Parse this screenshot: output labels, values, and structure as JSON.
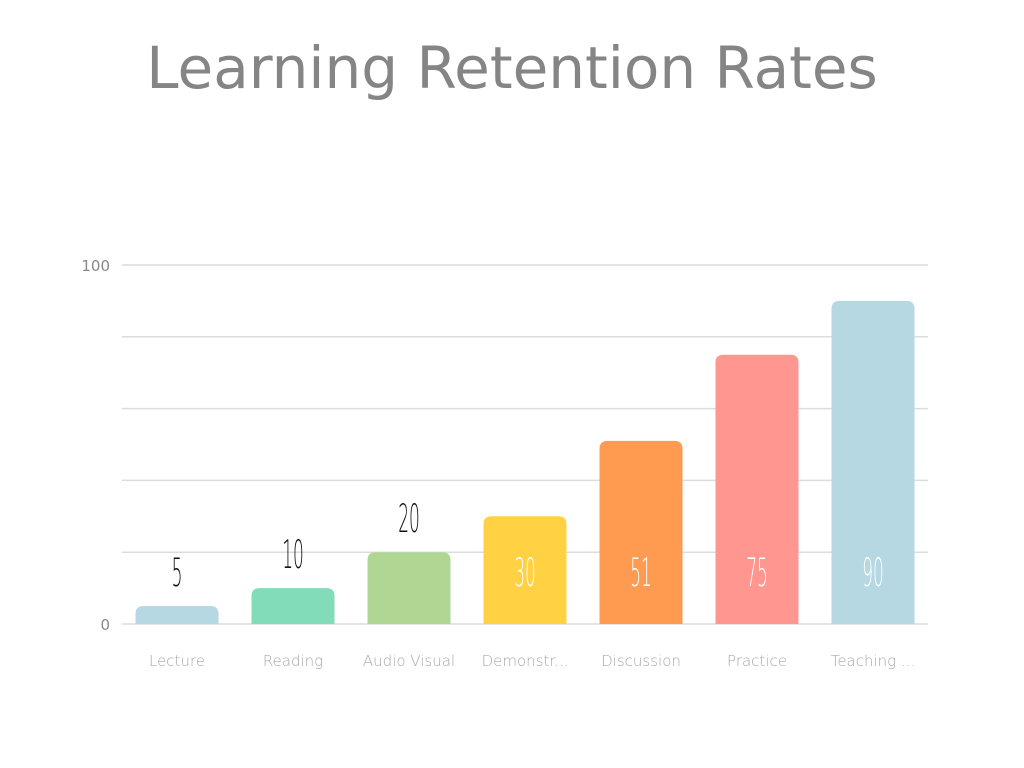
{
  "chart_data": {
    "type": "bar",
    "title": "Learning Retention Rates",
    "categories": [
      "Lecture",
      "Reading",
      "Audio Visual",
      "Demonstr...",
      "Discussion",
      "Practice",
      "Teaching ..."
    ],
    "values": [
      5,
      10,
      20,
      30,
      51,
      75,
      90
    ],
    "colors": [
      "#b5d8e2",
      "#82dcb9",
      "#afd793",
      "#ffd143",
      "#ff9b51",
      "#ff9690",
      "#b5d8e2"
    ],
    "ylim": [
      0,
      100
    ],
    "yticks": [
      0,
      100
    ],
    "gridlines": [
      0,
      20,
      40,
      60,
      80,
      100
    ],
    "grid": true,
    "xlabel": "",
    "ylabel": ""
  }
}
